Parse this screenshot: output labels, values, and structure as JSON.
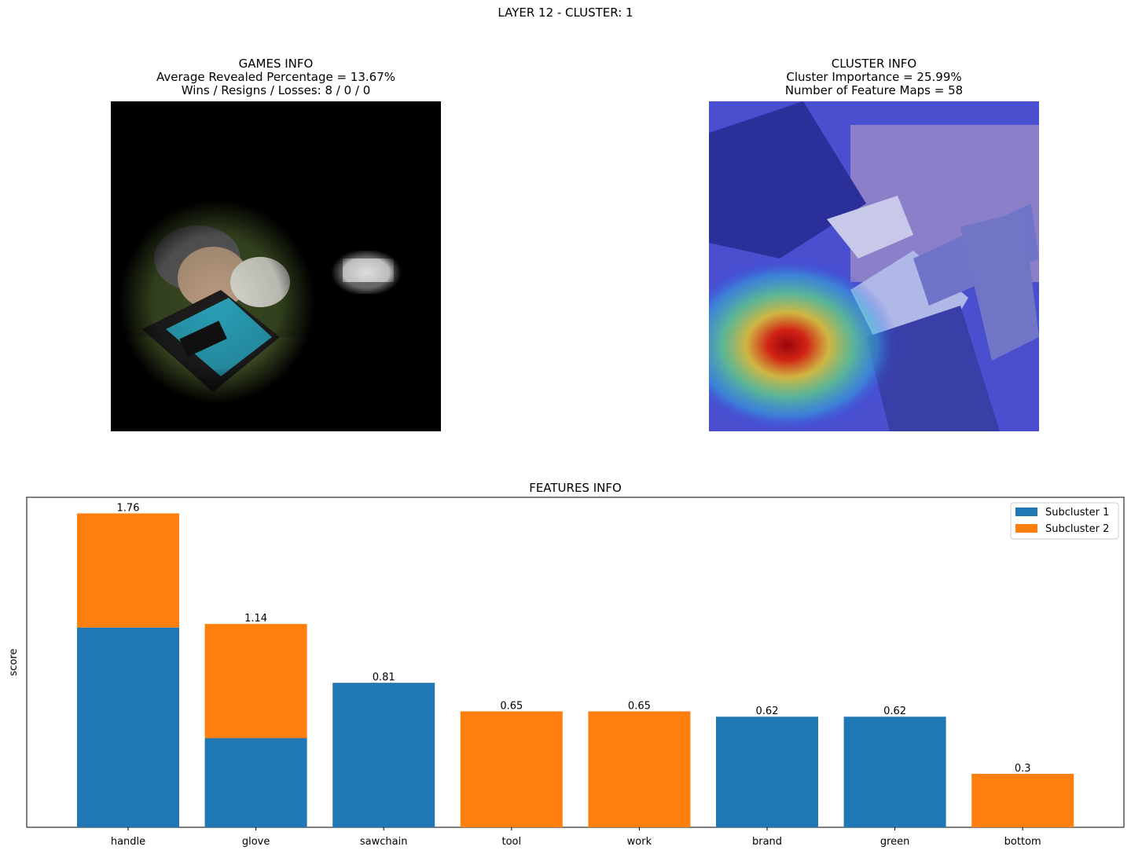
{
  "suptitle": "LAYER 12 - CLUSTER: 1",
  "games_info": {
    "title": "GAMES INFO",
    "line1": "Average Revealed Percentage = 13.67%",
    "line2": "Wins / Resigns / Losses: 8 / 0 / 0"
  },
  "cluster_info": {
    "title": "CLUSTER INFO",
    "line1": "Cluster Importance = 25.99%",
    "line2": "Number of Feature Maps = 58"
  },
  "chart_data": {
    "type": "bar",
    "stacked": true,
    "title": "FEATURES INFO",
    "xlabel": "",
    "ylabel": "score",
    "ylim": [
      0,
      1.85
    ],
    "grid": false,
    "legend_position": "top-right",
    "categories": [
      "handle",
      "glove",
      "sawchain",
      "tool",
      "work",
      "brand",
      "green",
      "bottom"
    ],
    "series": [
      {
        "name": "Subcluster 1",
        "color": "#1f77b4",
        "values": [
          1.12,
          0.5,
          0.81,
          0,
          0,
          0.62,
          0.62,
          0
        ]
      },
      {
        "name": "Subcluster 2",
        "color": "#ff7f0e",
        "values": [
          0.64,
          0.64,
          0,
          0.65,
          0.65,
          0,
          0,
          0.3
        ]
      }
    ],
    "totals": [
      "1.76",
      "1.14",
      "0.81",
      "0.65",
      "0.65",
      "0.62",
      "0.62",
      "0.3"
    ]
  }
}
